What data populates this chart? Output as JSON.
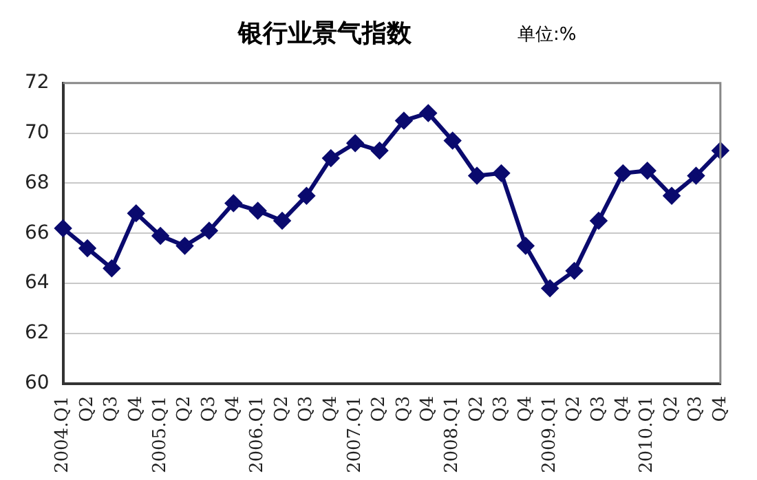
{
  "chart_data": {
    "type": "line",
    "title": "银行业景气指数",
    "annotations": [
      "单位:%"
    ],
    "categories": [
      "2004.Q1",
      "Q2",
      "Q3",
      "Q4",
      "2005.Q1",
      "Q2",
      "Q3",
      "Q4",
      "2006.Q1",
      "Q2",
      "Q3",
      "Q4",
      "2007.Q1",
      "Q2",
      "Q3",
      "Q4",
      "2008.Q1",
      "Q2",
      "Q3",
      "Q4",
      "2009.Q1",
      "Q2",
      "Q3",
      "Q4",
      "2010.Q1",
      "Q2",
      "Q3",
      "Q4"
    ],
    "series": [
      {
        "color": "#0a0a6e",
        "values": [
          66.2,
          65.4,
          64.6,
          66.8,
          65.9,
          65.5,
          66.1,
          67.2,
          66.9,
          66.5,
          67.5,
          69.0,
          69.6,
          69.3,
          70.5,
          70.8,
          69.7,
          68.3,
          68.4,
          65.5,
          63.8,
          64.5,
          66.5,
          68.4,
          68.5,
          67.5,
          68.3,
          69.3
        ]
      }
    ],
    "ylim": [
      60,
      72
    ],
    "yticks": [
      60,
      62,
      64,
      66,
      68,
      70,
      72
    ],
    "grid": "y",
    "legend": false,
    "marker": "diamond",
    "line_style": "solid"
  }
}
